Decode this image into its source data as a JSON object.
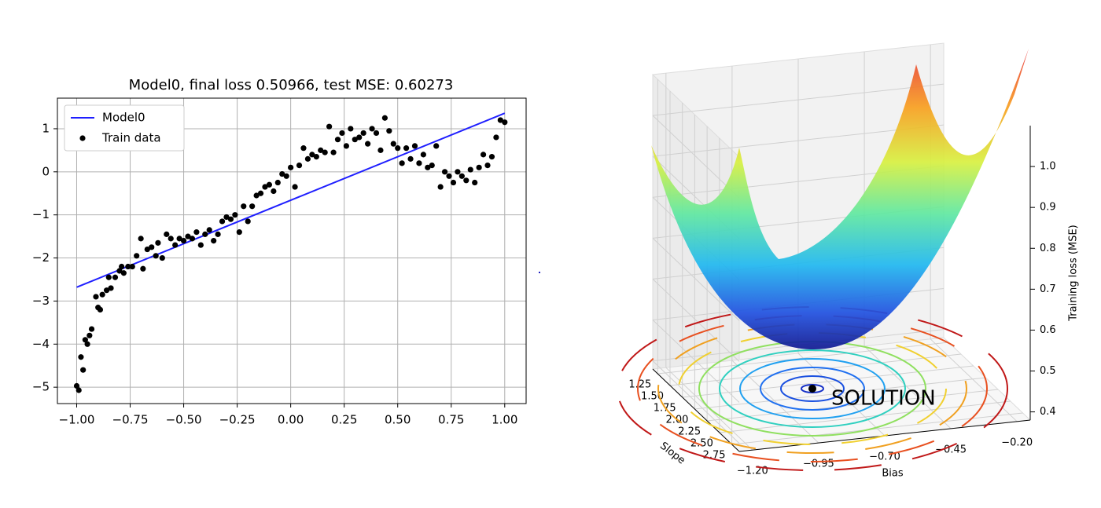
{
  "chart_data": [
    {
      "type": "scatter",
      "title": "Model0, final loss 0.50966, test MSE: 0.60273",
      "xlim": [
        -1.09,
        1.1
      ],
      "ylim": [
        -5.38,
        1.71
      ],
      "xticks": [
        {
          "value": -1.0,
          "label": "−1.00"
        },
        {
          "value": -0.75,
          "label": "−0.75"
        },
        {
          "value": -0.5,
          "label": "−0.50"
        },
        {
          "value": -0.25,
          "label": "−0.25"
        },
        {
          "value": 0,
          "label": "0.00"
        },
        {
          "value": 0.25,
          "label": "0.25"
        },
        {
          "value": 0.5,
          "label": "0.50"
        },
        {
          "value": 0.75,
          "label": "0.75"
        },
        {
          "value": 1,
          "label": "1.00"
        }
      ],
      "yticks": [
        {
          "value": -5,
          "label": "−5"
        },
        {
          "value": -4,
          "label": "−4"
        },
        {
          "value": -3,
          "label": "−3"
        },
        {
          "value": -2,
          "label": "−2"
        },
        {
          "value": -1,
          "label": "−1"
        },
        0,
        1
      ],
      "grid": true,
      "legend": "upper left",
      "series": [
        {
          "name": "Model0",
          "type": "line",
          "color": "#1f1fff",
          "x": [
            -1,
            1
          ],
          "values": [
            -2.68,
            1.36
          ]
        },
        {
          "name": "Train data",
          "type": "scatter",
          "color": "#000000",
          "x": [
            -1.0,
            -0.99,
            -0.98,
            -0.97,
            -0.96,
            -0.95,
            -0.94,
            -0.93,
            -0.91,
            -0.9,
            -0.89,
            -0.88,
            -0.86,
            -0.85,
            -0.84,
            -0.82,
            -0.8,
            -0.79,
            -0.78,
            -0.76,
            -0.74,
            -0.72,
            -0.7,
            -0.69,
            -0.67,
            -0.65,
            -0.63,
            -0.62,
            -0.6,
            -0.58,
            -0.56,
            -0.54,
            -0.52,
            -0.5,
            -0.48,
            -0.46,
            -0.44,
            -0.42,
            -0.4,
            -0.38,
            -0.36,
            -0.34,
            -0.32,
            -0.3,
            -0.28,
            -0.26,
            -0.24,
            -0.22,
            -0.2,
            -0.18,
            -0.16,
            -0.14,
            -0.12,
            -0.1,
            -0.08,
            -0.06,
            -0.04,
            -0.02,
            0.0,
            0.02,
            0.04,
            0.06,
            0.08,
            0.1,
            0.12,
            0.14,
            0.16,
            0.18,
            0.2,
            0.22,
            0.24,
            0.26,
            0.28,
            0.3,
            0.32,
            0.34,
            0.36,
            0.38,
            0.4,
            0.42,
            0.44,
            0.46,
            0.48,
            0.5,
            0.52,
            0.54,
            0.56,
            0.58,
            0.6,
            0.62,
            0.64,
            0.66,
            0.68,
            0.7,
            0.72,
            0.74,
            0.76,
            0.78,
            0.8,
            0.82,
            0.84,
            0.86,
            0.88,
            0.9,
            0.92,
            0.94,
            0.96,
            0.98,
            1.0
          ],
          "values": [
            -4.97,
            -5.07,
            -4.3,
            -4.6,
            -3.9,
            -4.0,
            -3.8,
            -3.65,
            -2.9,
            -3.15,
            -3.2,
            -2.85,
            -2.75,
            -2.45,
            -2.7,
            -2.45,
            -2.3,
            -2.2,
            -2.35,
            -2.2,
            -2.2,
            -1.95,
            -1.55,
            -2.25,
            -1.8,
            -1.75,
            -1.95,
            -1.65,
            -2.0,
            -1.45,
            -1.55,
            -1.7,
            -1.55,
            -1.6,
            -1.5,
            -1.55,
            -1.4,
            -1.7,
            -1.45,
            -1.35,
            -1.6,
            -1.45,
            -1.15,
            -1.05,
            -1.1,
            -1.0,
            -1.4,
            -0.8,
            -1.15,
            -0.8,
            -0.55,
            -0.5,
            -0.35,
            -0.3,
            -0.45,
            -0.25,
            -0.05,
            -0.1,
            0.1,
            -0.35,
            0.15,
            0.55,
            0.3,
            0.4,
            0.35,
            0.5,
            0.45,
            1.05,
            0.45,
            0.75,
            0.9,
            0.6,
            1.0,
            0.75,
            0.8,
            0.9,
            0.65,
            1.0,
            0.9,
            0.5,
            1.25,
            0.95,
            0.65,
            0.55,
            0.2,
            0.55,
            0.3,
            0.6,
            0.2,
            0.4,
            0.1,
            0.15,
            0.6,
            -0.35,
            0.0,
            -0.1,
            -0.25,
            0.0,
            -0.1,
            -0.2,
            0.05,
            -0.25,
            0.1,
            0.4,
            0.15,
            0.35,
            0.8,
            1.2,
            1.15
          ]
        }
      ]
    },
    {
      "type": "surface3d",
      "colormap": "jet",
      "xlabel": "Bias",
      "ylabel": "Slope",
      "zlabel": "Training loss (MSE)",
      "xlim": [
        -1.25,
        -0.15
      ],
      "ylim": [
        1.15,
        2.9
      ],
      "zlim": [
        0.38,
        1.1
      ],
      "xticks": [
        {
          "value": -1.2,
          "label": "−1.20"
        },
        {
          "value": -0.95,
          "label": "−0.95"
        },
        {
          "value": -0.7,
          "label": "−0.70"
        },
        {
          "value": -0.45,
          "label": "−0.45"
        },
        {
          "value": -0.2,
          "label": "−0.20"
        }
      ],
      "yticks": [
        1.25,
        {
          "value": 1.5,
          "label": "1.50"
        },
        1.75,
        {
          "value": 2.0,
          "label": "2.00"
        },
        2.25,
        {
          "value": 2.5,
          "label": "2.50"
        },
        2.75
      ],
      "zticks": [
        0.4,
        0.5,
        0.6,
        0.7,
        0.8,
        0.9,
        {
          "value": 1.0,
          "label": "1.0"
        }
      ],
      "annotation": "SOLUTION"
    }
  ]
}
